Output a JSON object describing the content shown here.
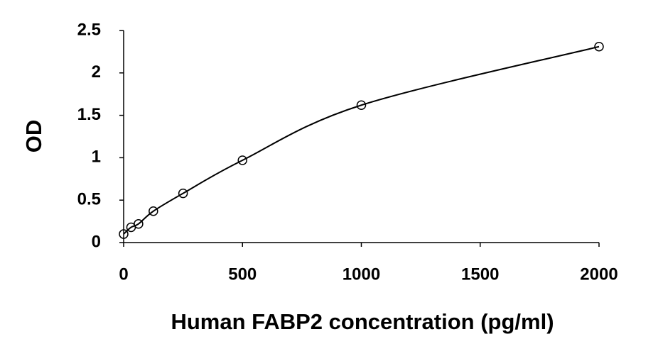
{
  "chart_data": {
    "type": "scatter",
    "x_label": "Human FABP2 concentration (pg/ml)",
    "y_label": "OD",
    "series": [
      {
        "color": "#000000",
        "line": "smooth",
        "marker": "open-circle",
        "x": [
          0,
          31.25,
          62.5,
          125,
          250,
          500,
          1000,
          2000
        ],
        "values": [
          0.1,
          0.18,
          0.22,
          0.37,
          0.58,
          0.97,
          1.62,
          2.31
        ]
      }
    ],
    "xlim": [
      0,
      2000
    ],
    "xticks": [
      0,
      500,
      1000,
      1500,
      2000
    ],
    "ylim": [
      0,
      2.5
    ],
    "yticks": [
      0,
      0.5,
      1,
      1.5,
      2,
      2.5
    ],
    "grid": false
  }
}
